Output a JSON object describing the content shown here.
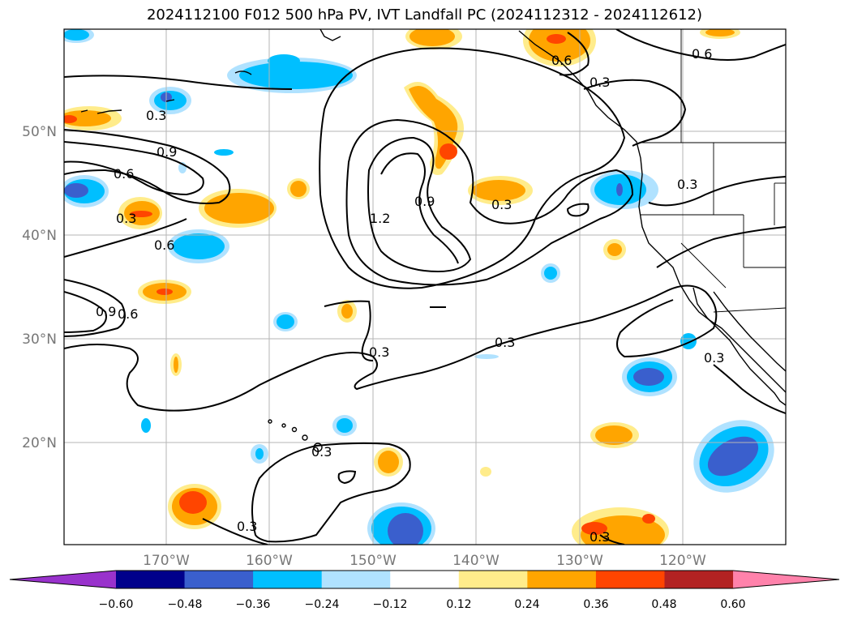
{
  "title": "2024112100 F012 500 hPa PV, IVT Landfall PC (2024112312 - 2024112612)",
  "lat_labels": [
    "50°N",
    "40°N",
    "30°N",
    "20°N"
  ],
  "lon_labels": [
    "170°W",
    "160°W",
    "150°W",
    "140°W",
    "130°W",
    "120°W"
  ],
  "colorbar": {
    "colors": [
      "#9932cc",
      "#00008b",
      "#3a5fcd",
      "#00bfff",
      "#b0e2ff",
      "#ffffff",
      "#ffec8b",
      "#ffa500",
      "#ff4500",
      "#b22222",
      "#ff82ab"
    ],
    "tick_labels": [
      "−0.60",
      "−0.48",
      "−0.36",
      "−0.24",
      "−0.12",
      "0.12",
      "0.24",
      "0.36",
      "0.48",
      "0.60"
    ]
  },
  "contour_labels": [
    "0.3",
    "0.9",
    "0.6",
    "0.3",
    "0.6",
    "0.9",
    "0.6",
    "0.9",
    "1.2",
    "0.3",
    "0.3",
    "0.3",
    "0.6",
    "0.6",
    "0.3",
    "0.3",
    "0.3",
    "0.3",
    "0.3",
    "0.3"
  ]
}
